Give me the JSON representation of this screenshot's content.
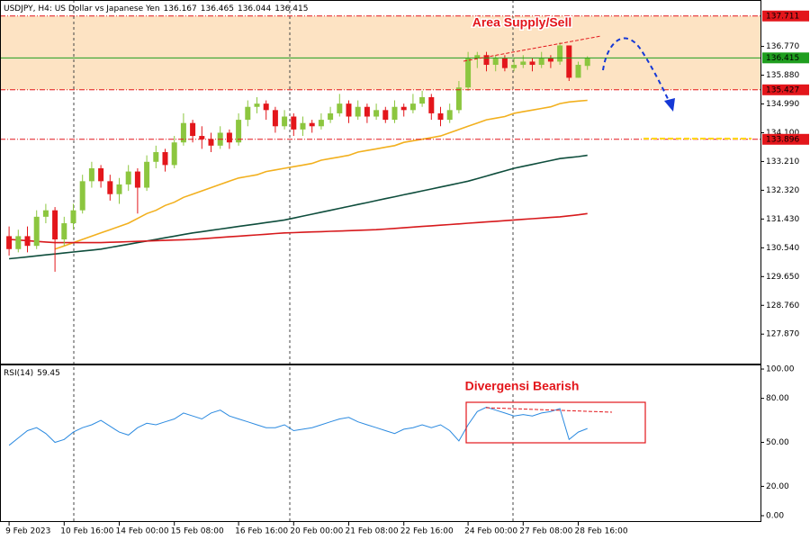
{
  "chart_data": [
    {
      "type": "candlestick",
      "title": "USDJPY, H4:  US Dollar vs Japanese Yen",
      "annotation": "Area Supply/Sell",
      "x": [
        "9 Feb 2023",
        null,
        null,
        null,
        null,
        null,
        "10 Feb 16:00",
        null,
        null,
        null,
        null,
        null,
        "14 Feb 00:00",
        null,
        null,
        null,
        null,
        null,
        "15 Feb 08:00",
        null,
        null,
        null,
        null,
        null,
        null,
        "16 Feb 16:00",
        null,
        null,
        null,
        null,
        null,
        "20 Feb 00:00",
        null,
        null,
        null,
        null,
        null,
        "21 Feb 08:00",
        null,
        null,
        null,
        null,
        null,
        "22 Feb 16:00",
        null,
        null,
        null,
        null,
        null,
        null,
        "24 Feb 00:00",
        null,
        null,
        null,
        null,
        null,
        "27 Feb 08:00",
        null,
        null,
        null,
        null,
        null,
        "28 Feb 16:00",
        null
      ],
      "open": [
        130.9,
        130.5,
        130.9,
        130.6,
        131.5,
        131.7,
        130.8,
        131.3,
        131.7,
        132.6,
        133.0,
        132.6,
        132.2,
        132.5,
        132.9,
        132.4,
        133.2,
        133.5,
        133.1,
        133.8,
        134.4,
        134.0,
        133.9,
        133.7,
        134.1,
        133.8,
        134.5,
        134.9,
        135.0,
        134.8,
        134.3,
        134.6,
        134.2,
        134.4,
        134.3,
        134.5,
        134.7,
        135.0,
        134.6,
        134.9,
        134.6,
        134.8,
        134.5,
        134.9,
        134.8,
        135.0,
        135.2,
        134.7,
        134.5,
        134.8,
        135.5,
        136.4,
        136.5,
        136.2,
        136.4,
        136.1,
        136.2,
        136.3,
        136.2,
        136.4,
        136.3,
        136.8,
        135.8,
        136.167
      ],
      "high": [
        131.2,
        131.1,
        131.2,
        131.7,
        131.9,
        131.8,
        131.5,
        131.9,
        132.8,
        133.2,
        133.1,
        132.8,
        132.7,
        133.1,
        133.0,
        133.4,
        133.7,
        133.6,
        134.0,
        134.7,
        134.5,
        134.3,
        134.1,
        134.3,
        134.2,
        134.7,
        135.1,
        135.2,
        135.1,
        134.9,
        134.8,
        134.7,
        134.6,
        134.5,
        134.7,
        134.9,
        135.3,
        135.1,
        135.1,
        135.0,
        135.0,
        134.9,
        135.1,
        135.0,
        135.3,
        135.4,
        135.3,
        134.9,
        135.0,
        135.7,
        136.6,
        136.6,
        136.6,
        136.5,
        136.5,
        136.4,
        136.5,
        136.4,
        136.6,
        136.5,
        136.9,
        136.8,
        136.3,
        136.465
      ],
      "low": [
        130.3,
        130.4,
        130.4,
        130.5,
        131.3,
        129.8,
        130.6,
        131.1,
        131.6,
        132.4,
        132.4,
        132.0,
        131.9,
        132.3,
        131.6,
        132.3,
        133.0,
        132.9,
        133.0,
        133.7,
        133.8,
        133.6,
        133.5,
        133.6,
        133.6,
        133.7,
        134.3,
        134.7,
        134.5,
        134.1,
        134.2,
        134.0,
        134.0,
        134.1,
        134.2,
        134.4,
        134.6,
        134.4,
        134.5,
        134.4,
        134.5,
        134.4,
        134.4,
        134.6,
        134.7,
        134.9,
        134.5,
        134.3,
        134.4,
        134.7,
        135.4,
        136.1,
        136.0,
        136.0,
        136.0,
        136.0,
        136.1,
        136.0,
        136.1,
        136.1,
        136.2,
        135.7,
        135.8,
        136.044
      ],
      "close": [
        130.5,
        130.9,
        130.6,
        131.5,
        131.7,
        130.8,
        131.3,
        131.7,
        132.6,
        133.0,
        132.6,
        132.2,
        132.5,
        132.9,
        132.4,
        133.2,
        133.5,
        133.1,
        133.8,
        134.4,
        134.0,
        133.9,
        133.7,
        134.1,
        133.8,
        134.5,
        134.9,
        135.0,
        134.8,
        134.3,
        134.6,
        134.2,
        134.4,
        134.3,
        134.5,
        134.7,
        135.0,
        134.6,
        134.9,
        134.6,
        134.8,
        134.5,
        134.9,
        134.8,
        135.0,
        135.2,
        134.7,
        134.5,
        134.8,
        135.5,
        136.4,
        136.5,
        136.2,
        136.4,
        136.1,
        136.2,
        136.3,
        136.2,
        136.4,
        136.3,
        136.8,
        135.8,
        136.2,
        136.415
      ],
      "up_color": "#8cc63f",
      "down_color": "#e3161b",
      "price_line_color": "#1f9e1f",
      "overlays": [
        {
          "color": "#f2b01e",
          "values": [
            null,
            null,
            null,
            null,
            null,
            130.5,
            130.6,
            130.7,
            130.8,
            130.9,
            131.0,
            131.1,
            131.2,
            131.3,
            131.45,
            131.6,
            131.7,
            131.85,
            131.95,
            132.1,
            132.2,
            132.3,
            132.4,
            132.5,
            132.6,
            132.7,
            132.75,
            132.8,
            132.9,
            132.95,
            133.0,
            133.05,
            133.1,
            133.15,
            133.25,
            133.3,
            133.35,
            133.4,
            133.5,
            133.55,
            133.6,
            133.65,
            133.7,
            133.8,
            133.85,
            133.9,
            133.95,
            134.0,
            134.1,
            134.2,
            134.3,
            134.4,
            134.5,
            134.55,
            134.6,
            134.7,
            134.75,
            134.8,
            134.85,
            134.9,
            135.0,
            135.05,
            135.08,
            135.1
          ]
        },
        {
          "color": "#0e4d3c",
          "values": [
            130.2,
            130.23,
            130.26,
            130.29,
            130.32,
            130.35,
            130.38,
            130.41,
            130.44,
            130.47,
            130.5,
            130.55,
            130.6,
            130.65,
            130.7,
            130.75,
            130.8,
            130.85,
            130.9,
            130.95,
            131.0,
            131.04,
            131.08,
            131.12,
            131.16,
            131.2,
            131.24,
            131.28,
            131.32,
            131.36,
            131.4,
            131.46,
            131.52,
            131.58,
            131.64,
            131.7,
            131.76,
            131.82,
            131.88,
            131.94,
            132.0,
            132.06,
            132.12,
            132.18,
            132.24,
            132.3,
            132.36,
            132.42,
            132.48,
            132.54,
            132.6,
            132.68,
            132.76,
            132.84,
            132.92,
            133.0,
            133.06,
            133.12,
            133.18,
            133.24,
            133.3,
            133.33,
            133.36,
            133.4
          ]
        },
        {
          "color": "#d7191c",
          "values": [
            130.8,
            130.78,
            130.76,
            130.74,
            130.72,
            130.7,
            130.7,
            130.7,
            130.7,
            130.7,
            130.7,
            130.71,
            130.72,
            130.73,
            130.74,
            130.75,
            130.76,
            130.77,
            130.78,
            130.79,
            130.8,
            130.82,
            130.84,
            130.86,
            130.88,
            130.9,
            130.92,
            130.94,
            130.96,
            130.98,
            131.0,
            131.01,
            131.02,
            131.03,
            131.04,
            131.05,
            131.06,
            131.07,
            131.08,
            131.09,
            131.1,
            131.12,
            131.14,
            131.16,
            131.18,
            131.2,
            131.22,
            131.24,
            131.26,
            131.28,
            131.3,
            131.32,
            131.34,
            131.36,
            131.38,
            131.4,
            131.42,
            131.44,
            131.46,
            131.48,
            131.5,
            131.53,
            131.56,
            131.6
          ]
        }
      ],
      "levels": [
        {
          "value": 137.711,
          "color": "#e3161b"
        },
        {
          "value": 135.427,
          "color": "#e3161b"
        },
        {
          "value": 133.896,
          "color": "#e3161b"
        }
      ],
      "zone_color": "#fde3c3",
      "ylim": [
        126.93,
        138.15
      ],
      "yticks": [
        {
          "value": 136.77,
          "label": "136.770"
        },
        {
          "value": 135.88,
          "label": "135.880"
        },
        {
          "value": 134.99,
          "label": "134.990"
        },
        {
          "value": 134.1,
          "label": "134.100"
        },
        {
          "value": 133.21,
          "label": "133.210"
        },
        {
          "value": 132.32,
          "label": "132.320"
        },
        {
          "value": 131.43,
          "label": "131.430"
        },
        {
          "value": 130.54,
          "label": "130.540"
        },
        {
          "value": 129.65,
          "label": "129.650"
        },
        {
          "value": 128.76,
          "label": "128.760"
        },
        {
          "value": 127.87,
          "label": "127.870"
        }
      ]
    },
    {
      "type": "line",
      "title": "RSI(14)",
      "annotation": "Divergensi Bearish",
      "color": "#2b8ae0",
      "values": [
        48,
        53,
        58,
        60,
        56,
        50,
        52,
        57,
        60,
        62,
        65,
        61,
        57,
        55,
        60,
        63,
        62,
        64,
        66,
        70,
        68,
        66,
        70,
        72,
        68,
        66,
        64,
        62,
        60,
        60,
        62,
        58,
        59,
        60,
        62,
        64,
        66,
        67,
        64,
        62,
        60,
        58,
        56,
        59,
        60,
        62,
        60,
        62,
        58,
        51,
        62,
        71,
        74,
        72,
        70,
        68,
        69,
        68,
        70,
        71,
        73,
        52,
        57,
        59.45
      ],
      "ylim": [
        -4.3,
        103.1
      ],
      "yticks": [
        {
          "value": 100,
          "label": "100.00"
        },
        {
          "value": 80,
          "label": "80.00"
        },
        {
          "value": 50,
          "label": "50.00"
        },
        {
          "value": 20,
          "label": "20.00"
        },
        {
          "value": 0,
          "label": "0.00"
        }
      ]
    }
  ]
}
